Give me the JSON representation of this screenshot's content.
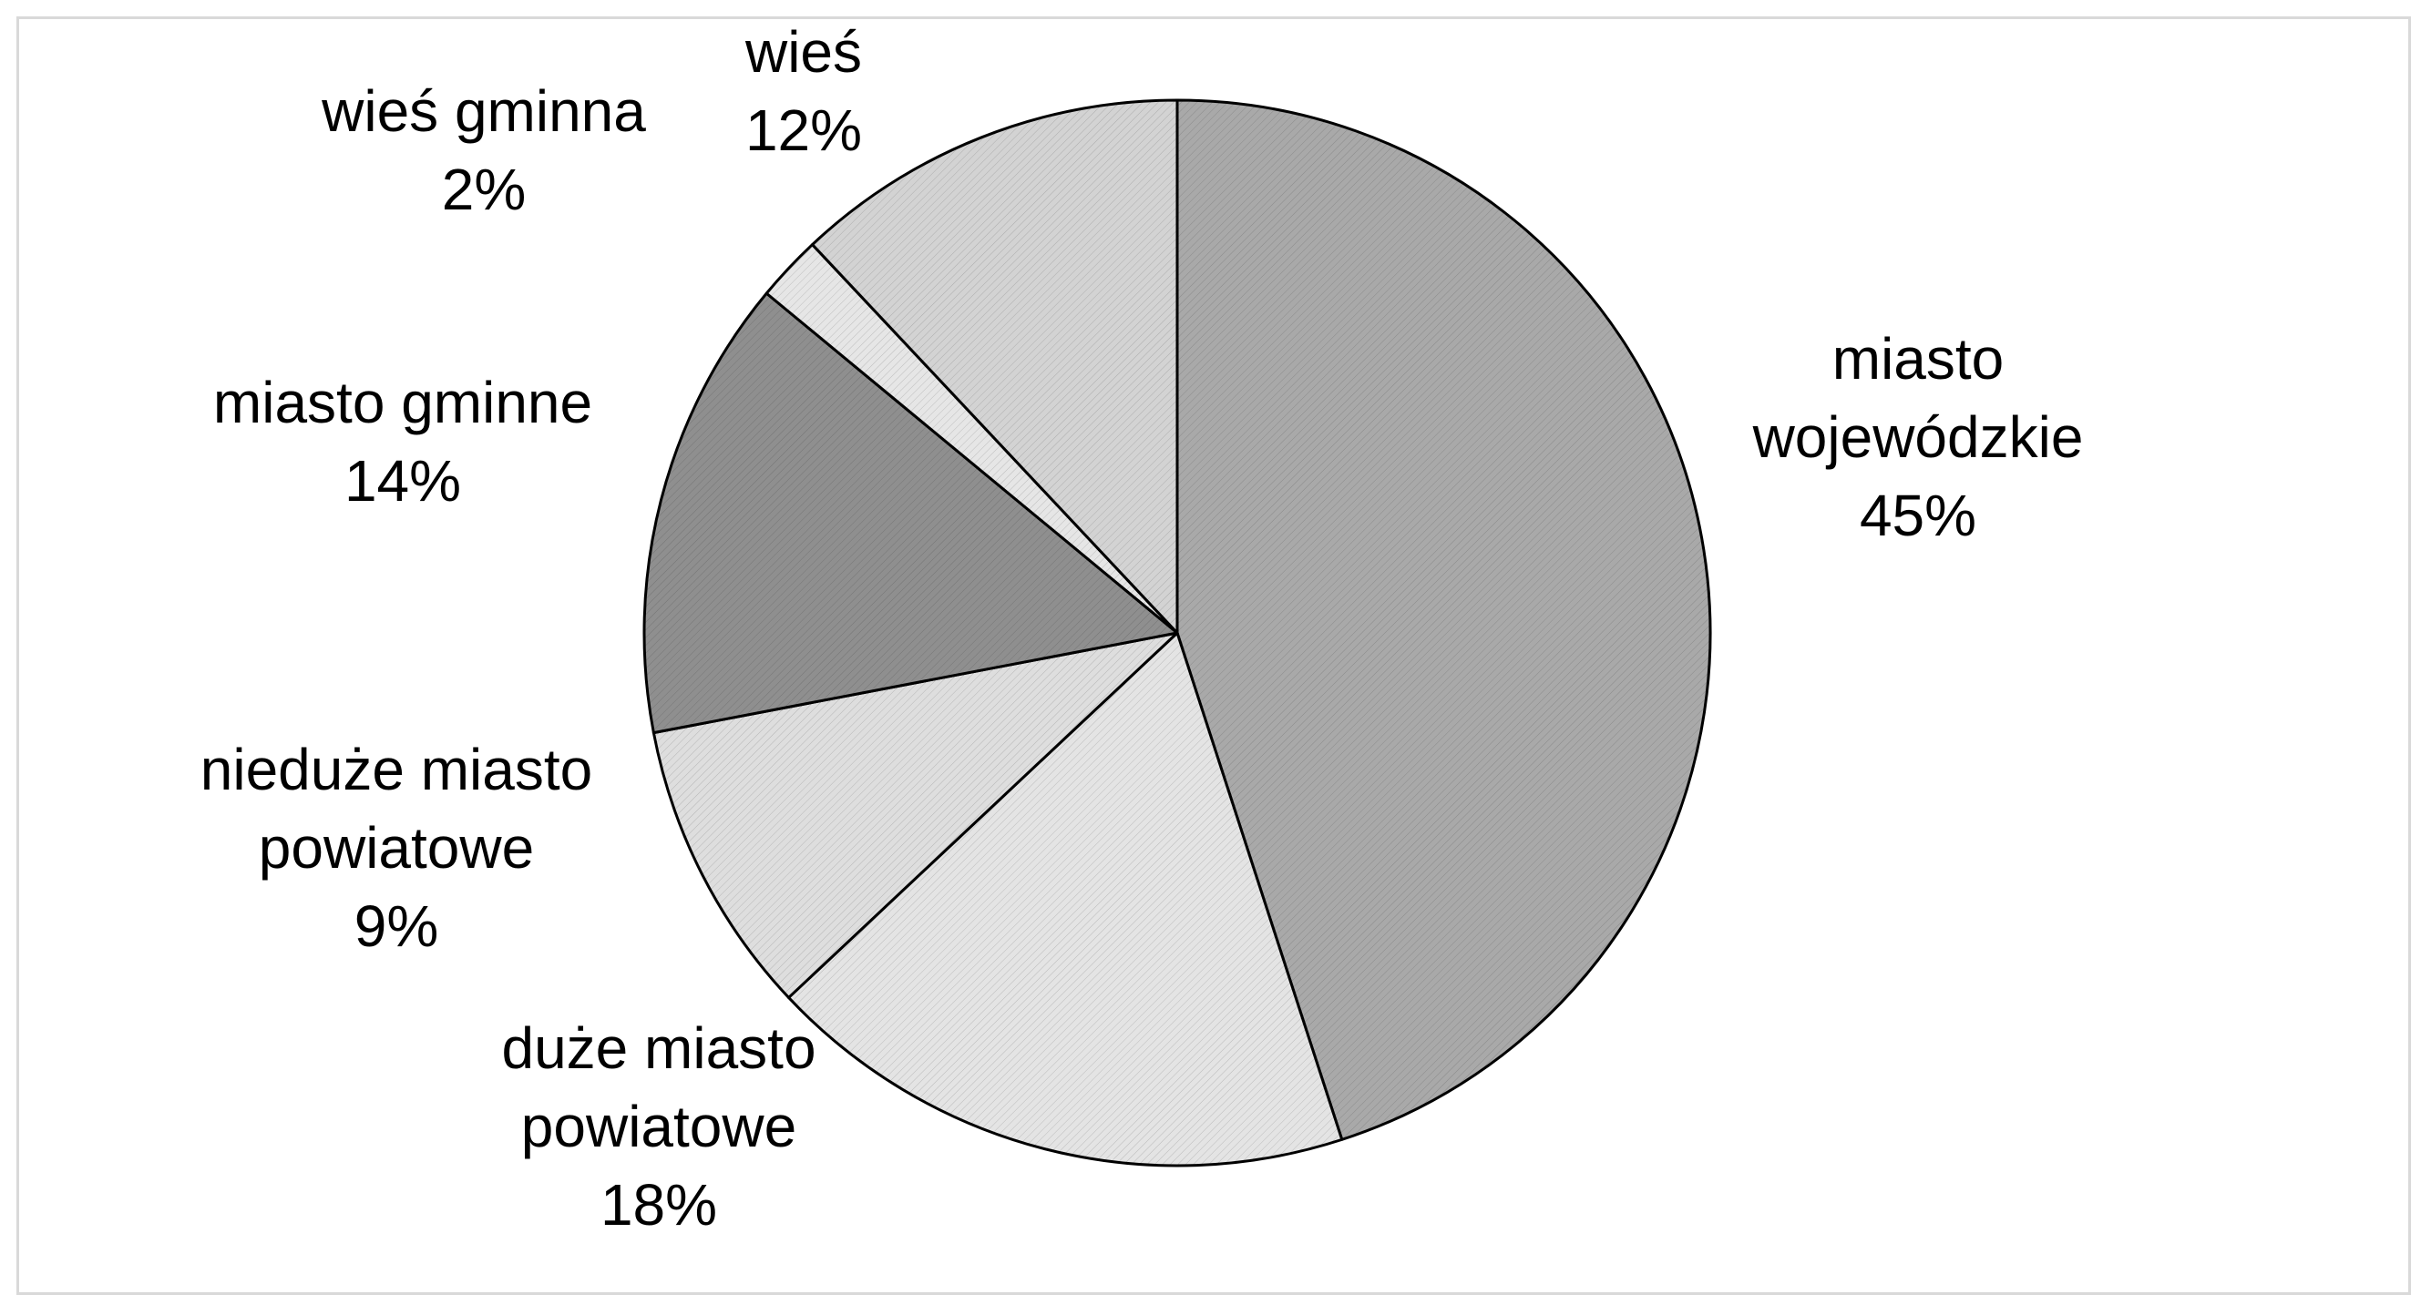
{
  "chart_data": {
    "type": "pie",
    "title": "",
    "slices": [
      {
        "label_lines": [
          "miasto",
          "wojewódzkie",
          "45%"
        ],
        "value": 45,
        "color": "#a9a9a9"
      },
      {
        "label_lines": [
          "duże miasto",
          "powiatowe",
          "18%"
        ],
        "value": 18,
        "color": "#e4e4e4"
      },
      {
        "label_lines": [
          "nieduże miasto",
          "powiatowe",
          "9%"
        ],
        "value": 9,
        "color": "#dedede"
      },
      {
        "label_lines": [
          "miasto gminne",
          "14%"
        ],
        "value": 14,
        "color": "#8f8f8f"
      },
      {
        "label_lines": [
          "wieś gminna",
          "2%"
        ],
        "value": 2,
        "color": "#e6e6e6"
      },
      {
        "label_lines": [
          "wieś",
          "12%"
        ],
        "value": 12,
        "color": "#d3d3d3"
      }
    ],
    "start_angle_deg": 0,
    "direction": "clockwise",
    "legend": "none"
  }
}
